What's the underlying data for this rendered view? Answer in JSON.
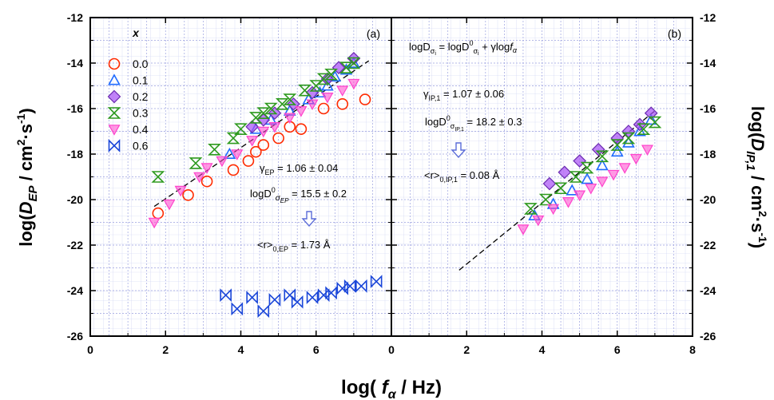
{
  "chart_data": {
    "type": "scatter",
    "xlabel_parts": [
      "log( ",
      "f",
      "α",
      " / Hz)"
    ],
    "ylabel_left_parts": [
      "log(",
      "D",
      "EP",
      " / cm",
      "2",
      "·s",
      "-1",
      ")"
    ],
    "ylabel_right_parts": [
      "log(",
      "D",
      "IP,1",
      " / cm",
      "2",
      "·s",
      "-1",
      ")"
    ],
    "ylim": [
      -26,
      -12
    ],
    "yticks": [
      -26,
      -24,
      -22,
      -20,
      -18,
      -16,
      -14,
      -12
    ],
    "grid": true,
    "panels": [
      {
        "label": "(a)",
        "xlim": [
          0,
          8
        ],
        "xticks": [
          0,
          2,
          4,
          6
        ],
        "legend": {
          "title": "x",
          "position": "top-left",
          "entries": [
            "0.0",
            "0.1",
            "0.2",
            "0.3",
            "0.4",
            "0.6"
          ]
        },
        "fit_line": {
          "x": [
            1.7,
            7.4
          ],
          "y": [
            -20.3,
            -13.9
          ]
        },
        "annotations": [
          {
            "lines": [
              "γ",
              "EP",
              "  = 1.06 ± 0.04"
            ]
          },
          {
            "lines": [
              "logD",
              "0",
              "σ",
              "EP",
              " = 15.5 ± 0.2"
            ]
          },
          {
            "lines": [
              "<r>",
              "0,EP",
              " = 1.73 Å"
            ]
          }
        ],
        "series": [
          {
            "name": "0.0",
            "color": "#ff2a00",
            "marker": "circle",
            "points": [
              [
                1.8,
                -20.6
              ],
              [
                2.6,
                -19.8
              ],
              [
                3.1,
                -19.2
              ],
              [
                3.8,
                -18.7
              ],
              [
                4.2,
                -18.3
              ],
              [
                4.4,
                -17.9
              ],
              [
                4.6,
                -17.6
              ],
              [
                5.0,
                -17.3
              ],
              [
                5.3,
                -16.8
              ],
              [
                5.6,
                -16.9
              ],
              [
                6.2,
                -16.0
              ],
              [
                6.7,
                -15.8
              ],
              [
                7.3,
                -15.6
              ]
            ]
          },
          {
            "name": "0.1",
            "color": "#1f6bff",
            "marker": "triangle-up",
            "points": [
              [
                3.7,
                -18.0
              ],
              [
                4.4,
                -16.9
              ],
              [
                4.8,
                -16.5
              ],
              [
                5.3,
                -16.1
              ],
              [
                5.8,
                -15.6
              ],
              [
                6.1,
                -15.3
              ],
              [
                6.3,
                -15.0
              ],
              [
                6.5,
                -14.6
              ],
              [
                6.8,
                -14.3
              ],
              [
                7.0,
                -14.0
              ]
            ]
          },
          {
            "name": "0.2",
            "color": "#a64ff5",
            "marker": "diamond",
            "points": [
              [
                4.3,
                -16.8
              ],
              [
                4.6,
                -16.5
              ],
              [
                4.9,
                -16.2
              ],
              [
                5.4,
                -15.8
              ],
              [
                5.9,
                -15.3
              ],
              [
                6.3,
                -14.7
              ],
              [
                6.6,
                -14.2
              ],
              [
                7.0,
                -13.8
              ]
            ]
          },
          {
            "name": "0.3",
            "color": "#2e9a1f",
            "marker": "hourglass",
            "points": [
              [
                1.8,
                -19.0
              ],
              [
                2.8,
                -18.4
              ],
              [
                3.3,
                -17.8
              ],
              [
                3.8,
                -17.3
              ],
              [
                4.0,
                -16.9
              ],
              [
                4.4,
                -16.4
              ],
              [
                4.6,
                -16.2
              ],
              [
                4.8,
                -16.0
              ],
              [
                5.1,
                -15.8
              ],
              [
                5.3,
                -15.6
              ],
              [
                5.7,
                -15.2
              ],
              [
                6.0,
                -15.0
              ],
              [
                6.2,
                -14.7
              ],
              [
                6.4,
                -14.5
              ],
              [
                6.8,
                -14.2
              ],
              [
                7.0,
                -14.0
              ]
            ]
          },
          {
            "name": "0.4",
            "color": "#ff44cc",
            "marker": "triangle-down",
            "points": [
              [
                1.7,
                -21.0
              ],
              [
                2.1,
                -20.2
              ],
              [
                2.4,
                -19.6
              ],
              [
                2.9,
                -19.0
              ],
              [
                3.1,
                -18.6
              ],
              [
                3.5,
                -18.3
              ],
              [
                3.9,
                -18.0
              ],
              [
                4.3,
                -17.4
              ],
              [
                4.6,
                -17.0
              ],
              [
                4.9,
                -16.8
              ],
              [
                5.3,
                -16.4
              ],
              [
                5.6,
                -16.1
              ],
              [
                5.9,
                -15.8
              ],
              [
                6.3,
                -15.5
              ],
              [
                6.7,
                -15.2
              ],
              [
                7.0,
                -14.9
              ]
            ]
          },
          {
            "name": "0.6",
            "color": "#1a46d9",
            "marker": "bowtie",
            "points": [
              [
                3.6,
                -24.2
              ],
              [
                3.9,
                -24.8
              ],
              [
                4.3,
                -24.3
              ],
              [
                4.6,
                -24.9
              ],
              [
                4.9,
                -24.4
              ],
              [
                5.3,
                -24.2
              ],
              [
                5.5,
                -24.5
              ],
              [
                5.9,
                -24.3
              ],
              [
                6.2,
                -24.2
              ],
              [
                6.4,
                -24.1
              ],
              [
                6.7,
                -23.9
              ],
              [
                6.9,
                -23.8
              ],
              [
                7.2,
                -23.8
              ],
              [
                7.6,
                -23.6
              ]
            ]
          }
        ]
      },
      {
        "label": "(b)",
        "xlim": [
          0,
          8
        ],
        "xticks": [
          0,
          2,
          4,
          6,
          8
        ],
        "fit_line": {
          "x": [
            1.8,
            7.0
          ],
          "y": [
            -23.1,
            -16.1
          ]
        },
        "annotations": [
          {
            "lines": [
              "logD",
              "σ",
              "i",
              " = logD",
              "0",
              "σ",
              "i",
              " + γlog",
              "f",
              "α"
            ]
          },
          {
            "lines": [
              "γ",
              "IP,1",
              "  = 1.07 ± 0.06"
            ]
          },
          {
            "lines": [
              "logD",
              "0",
              "σ",
              "IP,1",
              " = 18.2 ± 0.3"
            ]
          },
          {
            "lines": [
              "<r>",
              "0,IP,1",
              " = 0.08 Å"
            ]
          }
        ],
        "series": [
          {
            "name": "0.0",
            "color": "#ff2a00",
            "marker": "circle",
            "points": []
          },
          {
            "name": "0.1",
            "color": "#1f6bff",
            "marker": "triangle-up",
            "points": [
              [
                3.8,
                -20.7
              ],
              [
                4.3,
                -20.2
              ],
              [
                4.8,
                -19.6
              ],
              [
                5.2,
                -19.1
              ],
              [
                5.6,
                -18.5
              ],
              [
                6.0,
                -17.9
              ],
              [
                6.3,
                -17.5
              ],
              [
                6.6,
                -17.0
              ],
              [
                6.9,
                -16.5
              ]
            ]
          },
          {
            "name": "0.2",
            "color": "#a64ff5",
            "marker": "diamond",
            "points": [
              [
                4.2,
                -19.3
              ],
              [
                4.6,
                -18.8
              ],
              [
                5.0,
                -18.3
              ],
              [
                5.5,
                -17.8
              ],
              [
                6.0,
                -17.3
              ],
              [
                6.3,
                -17.0
              ],
              [
                6.6,
                -16.7
              ],
              [
                6.9,
                -16.2
              ]
            ]
          },
          {
            "name": "0.3",
            "color": "#2e9a1f",
            "marker": "hourglass",
            "points": [
              [
                3.7,
                -20.4
              ],
              [
                4.1,
                -20.0
              ],
              [
                4.5,
                -19.5
              ],
              [
                4.9,
                -19.0
              ],
              [
                5.2,
                -18.6
              ],
              [
                5.6,
                -18.1
              ],
              [
                6.0,
                -17.6
              ],
              [
                6.3,
                -17.3
              ],
              [
                6.7,
                -16.9
              ],
              [
                7.0,
                -16.6
              ]
            ]
          },
          {
            "name": "0.4",
            "color": "#ff44cc",
            "marker": "triangle-down",
            "points": [
              [
                3.5,
                -21.3
              ],
              [
                3.9,
                -20.9
              ],
              [
                4.3,
                -20.4
              ],
              [
                4.7,
                -20.1
              ],
              [
                5.0,
                -19.8
              ],
              [
                5.3,
                -19.5
              ],
              [
                5.6,
                -19.2
              ],
              [
                5.9,
                -18.9
              ],
              [
                6.2,
                -18.6
              ],
              [
                6.5,
                -18.2
              ],
              [
                6.8,
                -17.8
              ]
            ]
          },
          {
            "name": "0.6",
            "color": "#1a46d9",
            "marker": "bowtie",
            "points": []
          }
        ]
      }
    ]
  }
}
